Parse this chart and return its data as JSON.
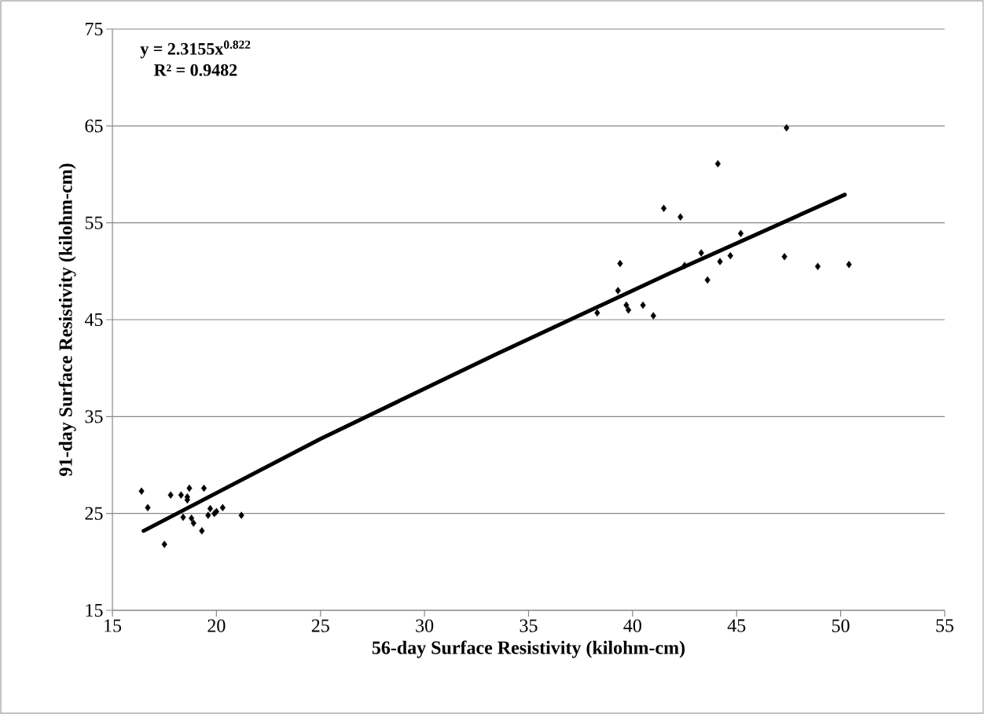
{
  "chart_data": {
    "type": "scatter",
    "xlabel": "56-day Surface Resistivity (kilohm-cm)",
    "ylabel": "91-day Surface Resistivity (kilohm-cm)",
    "annotations": [
      "y = 2.3155x$^{0.822}$",
      "R² = 0.9482"
    ],
    "xlim": [
      15,
      55
    ],
    "xticks": [
      15,
      20,
      25,
      30,
      35,
      40,
      45,
      50,
      55
    ],
    "ylim": [
      15,
      75
    ],
    "yticks": [
      15,
      25,
      35,
      45,
      55,
      65,
      75
    ],
    "grid": "y",
    "series": [
      {
        "marker": "diamond",
        "color": "#000000",
        "x": [
          16.4,
          16.7,
          17.5,
          17.8,
          18.3,
          18.7,
          18.6,
          18.6,
          19.4,
          18.4,
          18.8,
          18.9,
          19.3,
          19.7,
          19.6,
          19.9,
          20.0,
          20.3,
          21.2,
          38.3,
          39.3,
          39.4,
          39.7,
          39.8,
          40.5,
          41.0,
          41.5,
          42.3,
          42.5,
          43.3,
          43.6,
          44.1,
          44.2,
          44.7,
          45.2,
          47.3,
          47.4,
          48.9,
          50.4
        ],
        "values": [
          27.3,
          25.6,
          21.8,
          26.9,
          26.9,
          27.6,
          26.7,
          26.4,
          27.6,
          24.6,
          24.5,
          24.0,
          23.2,
          25.5,
          24.8,
          25.0,
          25.2,
          25.6,
          24.8,
          45.7,
          48.0,
          50.8,
          46.5,
          46.0,
          46.5,
          45.4,
          56.5,
          55.6,
          50.6,
          51.9,
          49.1,
          61.1,
          51.0,
          51.6,
          53.9,
          51.5,
          64.8,
          50.5,
          50.7
        ]
      },
      {
        "type": "line",
        "marker": "none",
        "line_style": "solid",
        "color": "#000000",
        "x": [
          16.5,
          25,
          33.4,
          41.8,
          50.2
        ],
        "values": [
          23.2,
          32.7,
          41.4,
          49.8,
          57.9
        ]
      }
    ]
  }
}
